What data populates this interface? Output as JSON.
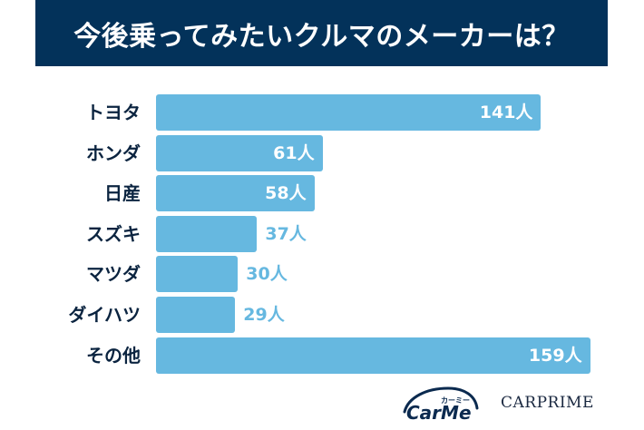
{
  "header": {
    "title": "今後乗ってみたいクルマのメーカーは？"
  },
  "chart_data": {
    "type": "bar",
    "orientation": "horizontal",
    "title": "今後乗ってみたいクルマのメーカーは？",
    "categories": [
      "トヨタ",
      "ホンダ",
      "日産",
      "スズキ",
      "マツダ",
      "ダイハツ",
      "その他"
    ],
    "values": [
      141,
      61,
      58,
      37,
      30,
      29,
      159
    ],
    "value_labels": [
      "141人",
      "61人",
      "58人",
      "37人",
      "30人",
      "29人",
      "159人"
    ],
    "unit": "人",
    "xlabel": "",
    "ylabel": "",
    "grid": false,
    "bar_color": "#66b8e0"
  },
  "colors": {
    "banner": "#03325a",
    "bar": "#66b8e0",
    "label": "#0b2440"
  },
  "footer": {
    "logo1": "CarMe",
    "logo1_sub": "カーミー",
    "logo2": "CARPRIME"
  }
}
